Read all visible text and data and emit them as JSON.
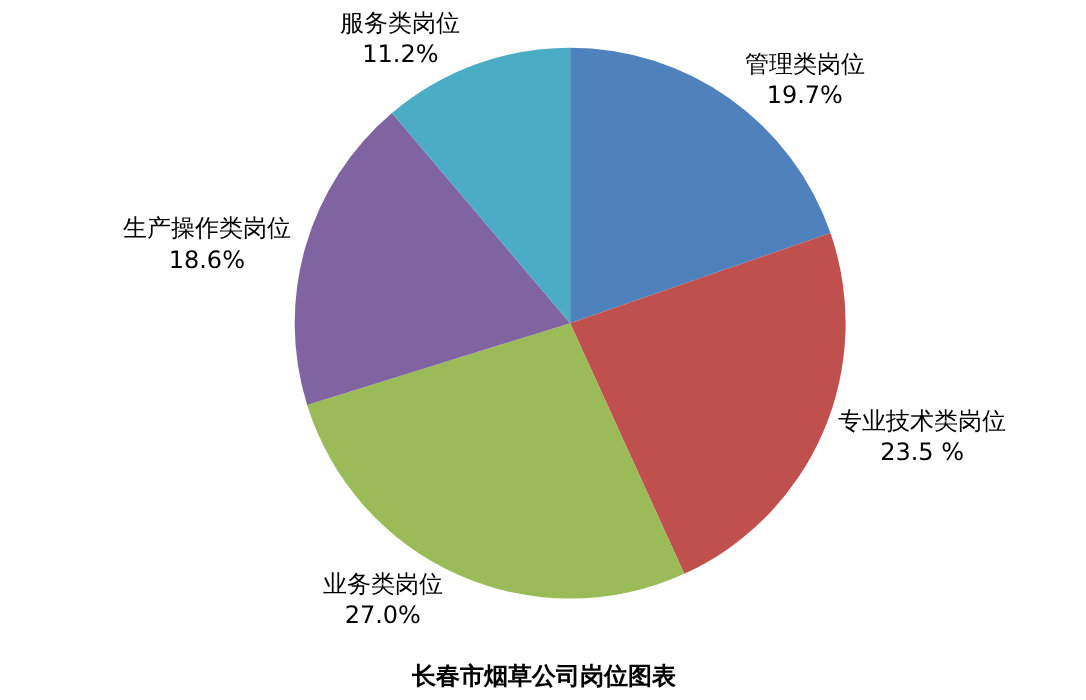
{
  "chart_data": {
    "type": "pie",
    "title": "长春市烟草公司岗位图表",
    "categories": [
      "管理类岗位",
      "专业技术类岗位",
      "业务类岗位",
      "生产操作类岗位",
      "服务类岗位"
    ],
    "values": [
      19.7,
      23.5,
      27.0,
      18.6,
      11.2
    ],
    "value_labels": [
      "19.7%",
      "23.5 %",
      "27.0%",
      "18.6%",
      "11.2%"
    ],
    "colors": [
      "#4f81bd",
      "#c0504d",
      "#9bbb59",
      "#8064a2",
      "#4bacc6"
    ],
    "legend": false
  }
}
